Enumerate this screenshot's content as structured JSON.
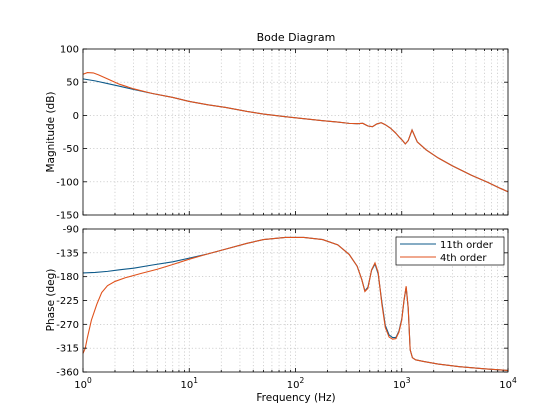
{
  "chart_data": {
    "type": "line",
    "title": "Bode Diagram",
    "xlabel": "Frequency  (Hz)",
    "xscale": "log",
    "xlim": [
      1,
      10000
    ],
    "x_tick_labels": [
      {
        "base": "10",
        "exp": "0"
      },
      {
        "base": "10",
        "exp": "1"
      },
      {
        "base": "10",
        "exp": "2"
      },
      {
        "base": "10",
        "exp": "3"
      },
      {
        "base": "10",
        "exp": "4"
      }
    ],
    "grid": true,
    "legend": {
      "placement": "top-right",
      "panel": "phase"
    },
    "colors": {
      "11th order": "#0e5a8a",
      "4th order": "#e0521c"
    },
    "panels": [
      {
        "ylabel": "Magnitude (dB)",
        "ylim": [
          -150,
          100
        ],
        "yticks": [
          -150,
          -100,
          -50,
          0,
          50,
          100
        ],
        "series": [
          {
            "name": "11th order",
            "x": [
              1,
              1.3,
              1.7,
              2.2,
              3,
              4.5,
              7,
              10,
              15,
              22,
              35,
              50,
              80,
              120,
              180,
              250,
              320,
              380,
              430,
              480,
              530,
              580,
              640,
              700,
              780,
              870,
              950,
              1020,
              1080,
              1150,
              1250,
              1400,
              1700,
              2200,
              3000,
              4500,
              6500,
              8500,
              10000
            ],
            "y": [
              55,
              52,
              48,
              44,
              39,
              33,
              27,
              21,
              16,
              12,
              6,
              2,
              -2,
              -5,
              -8,
              -10,
              -12,
              -12.5,
              -12,
              -16,
              -17,
              -13,
              -11,
              -14,
              -19,
              -26,
              -33,
              -38,
              -43,
              -38,
              -22,
              -40,
              -52,
              -64,
              -76,
              -90,
              -101,
              -110,
              -115
            ]
          },
          {
            "name": "4th order",
            "x": [
              1,
              1.1,
              1.25,
              1.4,
              1.7,
              2.2,
              3,
              4.5,
              7,
              10,
              15,
              22,
              35,
              50,
              80,
              120,
              180,
              250,
              320,
              380,
              430,
              480,
              530,
              580,
              640,
              700,
              780,
              870,
              950,
              1020,
              1080,
              1150,
              1250,
              1400,
              1700,
              2200,
              3000,
              4500,
              6500,
              8500,
              10000
            ],
            "y": [
              62,
              64.5,
              64,
              61,
              55,
              47,
              40,
              33,
              27,
              21,
              16,
              12,
              6,
              2,
              -2,
              -5,
              -8,
              -10,
              -12,
              -12.5,
              -12,
              -16,
              -17,
              -13,
              -11,
              -14,
              -19,
              -26,
              -33,
              -38,
              -43,
              -38,
              -22,
              -40,
              -52,
              -64,
              -76,
              -90,
              -101,
              -110,
              -115
            ]
          }
        ]
      },
      {
        "ylabel": "Phase (deg)",
        "ylim": [
          -360,
          -90
        ],
        "yticks": [
          -360,
          -315,
          -270,
          -225,
          -180,
          -135,
          -90
        ],
        "series": [
          {
            "name": "11th order",
            "x": [
              1,
              1.3,
              1.7,
              2.2,
              3,
              4.5,
              7,
              10,
              15,
              22,
              35,
              50,
              80,
              120,
              180,
              250,
              320,
              380,
              420,
              450,
              480,
              520,
              560,
              600,
              650,
              700,
              760,
              820,
              880,
              940,
              1000,
              1050,
              1100,
              1150,
              1200,
              1260,
              1350,
              1600,
              2200,
              3500,
              6000,
              10000
            ],
            "y": [
              -173,
              -172,
              -170,
              -167,
              -164,
              -158,
              -152,
              -145,
              -137,
              -128,
              -117,
              -110,
              -106,
              -106,
              -110,
              -120,
              -138,
              -160,
              -185,
              -207,
              -200,
              -168,
              -156,
              -175,
              -228,
              -272,
              -290,
              -295,
              -295,
              -283,
              -260,
              -225,
              -200,
              -240,
              -318,
              -333,
              -337,
              -340,
              -345,
              -350,
              -354,
              -357
            ]
          },
          {
            "name": "4th order",
            "x": [
              1,
              1.05,
              1.1,
              1.2,
              1.35,
              1.5,
              1.7,
              2,
              2.5,
              3.5,
              5,
              7,
              10,
              15,
              22,
              35,
              50,
              80,
              120,
              180,
              250,
              320,
              380,
              420,
              450,
              480,
              520,
              560,
              600,
              650,
              700,
              760,
              820,
              880,
              940,
              1000,
              1050,
              1100,
              1150,
              1200,
              1260,
              1350,
              1600,
              2200,
              3500,
              6000,
              10000
            ],
            "y": [
              -325,
              -315,
              -295,
              -262,
              -232,
              -210,
              -197,
              -189,
              -182,
              -174,
              -166,
              -157,
              -147,
              -137,
              -128,
              -117,
              -110,
              -106,
              -106,
              -110,
              -120,
              -138,
              -160,
              -185,
              -208,
              -202,
              -167,
              -154,
              -172,
              -232,
              -276,
              -294,
              -298,
              -297,
              -285,
              -262,
              -225,
              -198,
              -238,
              -318,
              -333,
              -337,
              -340,
              -345,
              -350,
              -354,
              -357
            ]
          }
        ]
      }
    ]
  }
}
